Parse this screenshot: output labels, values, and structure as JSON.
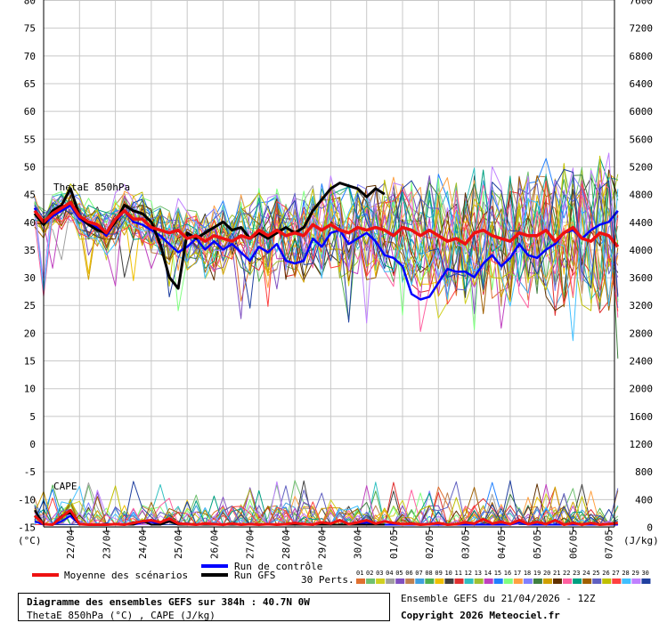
{
  "header": {
    "title": "Diagramme des ensembles GEFS sur 384h : 40.7N 0W",
    "subtitle": "ThetaE 850hPa (°C) , CAPE (J/kg)",
    "ensemble_info": "Ensemble GEFS du 21/04/2026 - 12Z",
    "copyright": "Copyright 2026 Meteociel.fr"
  },
  "legend": {
    "mean_label": "Moyenne des scénarios",
    "control_label": "Run de contrôle",
    "gfs_label": "Run GFS",
    "perts_label": "30 Perts.",
    "pert_numbers": [
      "01",
      "02",
      "03",
      "04",
      "05",
      "06",
      "07",
      "08",
      "09",
      "10",
      "11",
      "12",
      "13",
      "14",
      "15",
      "16",
      "17",
      "18",
      "19",
      "20",
      "21",
      "22",
      "23",
      "24",
      "25",
      "26",
      "27",
      "28",
      "29",
      "30"
    ],
    "pert_colors": [
      "#e07030",
      "#70c070",
      "#d0d020",
      "#a0a0a0",
      "#8050c0",
      "#c08050",
      "#40a0e0",
      "#50b050",
      "#f0c000",
      "#404040",
      "#e03030",
      "#30c0c0",
      "#a0c030",
      "#c040c0",
      "#2080ff",
      "#80ff80",
      "#ffa040",
      "#8080ff",
      "#408040",
      "#d0a000",
      "#603000",
      "#ff60a0",
      "#00a080",
      "#a06000",
      "#6060c0",
      "#c0c000",
      "#ff4040",
      "#40c0ff",
      "#c080ff",
      "#2040a0"
    ],
    "mean_color": "#ee1111",
    "control_color": "#0000ff",
    "gfs_color": "#000000"
  },
  "chart_data": {
    "type": "line",
    "panel_labels": [
      "ThetaE 850hPa",
      "CAPE"
    ],
    "left_unit": "(°C)",
    "right_unit": "(J/kg)",
    "left_ticks": [
      80,
      75,
      70,
      65,
      60,
      55,
      50,
      45,
      40,
      35,
      30,
      25,
      20,
      15,
      10,
      5,
      0,
      -5,
      -10,
      -15
    ],
    "right_ticks": [
      7600,
      7200,
      6800,
      6400,
      6000,
      5600,
      5200,
      4800,
      4400,
      4000,
      3600,
      3200,
      2800,
      2400,
      2000,
      1600,
      1200,
      800,
      400,
      0
    ],
    "x_labels": [
      "22/04",
      "23/04",
      "24/04",
      "25/04",
      "26/04",
      "27/04",
      "28/04",
      "29/04",
      "30/04",
      "01/05",
      "02/05",
      "03/05",
      "04/05",
      "05/05",
      "06/05",
      "07/05"
    ],
    "ylim": [
      -15,
      80
    ],
    "y2lim": [
      0,
      7600
    ],
    "grid": true,
    "step_hours": 6,
    "theta_e_series": {
      "mean": [
        42,
        40,
        41.5,
        42.5,
        43.5,
        41,
        40,
        39.5,
        38,
        40.5,
        42,
        40.5,
        40.5,
        39,
        38.5,
        38,
        38.5,
        37,
        37.5,
        36.5,
        37.5,
        37,
        36.5,
        37.5,
        37,
        38.5,
        37.5,
        38.5,
        37.5,
        38,
        37.5,
        39.5,
        38.5,
        39.5,
        38.5,
        38,
        39,
        38.5,
        39,
        38.5,
        37.5,
        39,
        38.5,
        37.5,
        38.5,
        37.5,
        36.5,
        37,
        36,
        38,
        38.5,
        37.5,
        37,
        36.5,
        38,
        37.5,
        37.5,
        38.5,
        36.5,
        38,
        39,
        37,
        36.5,
        38,
        37.5,
        35.5
      ],
      "control": [
        42.5,
        39.5,
        41,
        42,
        43,
        40.5,
        39.5,
        39,
        37.5,
        40,
        42,
        40,
        39.5,
        38.5,
        37.5,
        36,
        34.5,
        35.5,
        37,
        35,
        36.5,
        35,
        36,
        34.5,
        33,
        35.5,
        34.5,
        36,
        33,
        32.5,
        33,
        37,
        35.5,
        38,
        38.5,
        36,
        37,
        38,
        36.5,
        34,
        33.5,
        32,
        27,
        26,
        26.5,
        29,
        31.5,
        31,
        31,
        30,
        32.5,
        34,
        32,
        33.5,
        36,
        34,
        33.5,
        35,
        36,
        38,
        38.5,
        37,
        38.5,
        39.5,
        40,
        42
      ],
      "gfs": [
        41.5,
        39.5,
        42,
        43,
        46,
        41,
        39.5,
        38.5,
        38,
        40,
        43,
        42,
        41.5,
        40,
        36,
        30,
        28,
        38,
        37,
        38,
        39,
        40,
        38.5,
        39,
        37,
        38,
        37,
        38,
        39,
        38,
        39,
        42,
        44,
        46,
        47,
        46.5,
        46,
        44.5,
        46,
        45
      ]
    },
    "cape_series": {
      "mean": [
        -13,
        -14.5,
        -14.6,
        -13.2,
        -12,
        -14.5,
        -14.6,
        -14.6,
        -14.6,
        -14.5,
        -14.6,
        -14.3,
        -14,
        -13.8,
        -14.2,
        -13.5,
        -14.4,
        -14.5,
        -14.6,
        -14.4,
        -14.5,
        -14.6,
        -14.4,
        -14.6,
        -14.5,
        -14.6,
        -14.5,
        -14.6,
        -14.5,
        -14.3,
        -14.5,
        -14.6,
        -14.2,
        -14.4,
        -13.8,
        -14.5,
        -14.2,
        -13.8,
        -14.4,
        -14,
        -14.3,
        -14.5,
        -14.4,
        -14.6,
        -14.5,
        -14.3,
        -14.6,
        -14.5,
        -14.2,
        -14.4,
        -13.6,
        -14.4,
        -14.1,
        -14.5,
        -13.8,
        -14.5,
        -14.1,
        -14.5,
        -13.8,
        -14.6,
        -14.3,
        -14.6,
        -14.3,
        -14.6,
        -14.5,
        -14.3
      ],
      "control": [
        -14,
        -14.6,
        -14.6,
        -14,
        -13,
        -14.6,
        -14.6,
        -14.6,
        -14.6,
        -14.5,
        -14.6,
        -14.6,
        -14.2,
        -14.1,
        -14.6,
        -14,
        -14.6,
        -14.6,
        -14.6,
        -14.6,
        -14.6,
        -14.6,
        -14.6,
        -14.6,
        -14.6,
        -14.6,
        -14.6,
        -14.6,
        -14.6,
        -14.6,
        -14.6,
        -14.6,
        -14.6,
        -14.6,
        -14.6,
        -14.6,
        -14.6,
        -14.2,
        -14.6,
        -14.6,
        -14.6,
        -14.6,
        -14.6,
        -14.6,
        -14.6,
        -14.6,
        -14.6,
        -14.6,
        -14.6,
        -14.6,
        -14.6,
        -14.6,
        -14.6,
        -14.6,
        -14.2,
        -14.6,
        -14.6,
        -14.6,
        -14.6,
        -14.6,
        -14.6,
        -14.6,
        -14.6,
        -14.6,
        -14.6,
        -14.6
      ],
      "gfs": [
        -12,
        -14.5,
        -14.6,
        -13,
        -12.5,
        -14.6,
        -14.6,
        -14.6,
        -14.6,
        -14.6,
        -14.6,
        -14.6,
        -13.9,
        -14.6,
        -14.6,
        -14,
        -14.6,
        -14.6,
        -14.6,
        -14.6,
        -14.6,
        -14.6,
        -14.6,
        -14.6,
        -14.6,
        -14.6,
        -14.6,
        -14.6,
        -14.6,
        -14.6,
        -14.6,
        -14.6,
        -14.6,
        -14.6,
        -14.6,
        -14.6,
        -14.6,
        -14.6,
        -14.6,
        -14.6
      ]
    }
  }
}
